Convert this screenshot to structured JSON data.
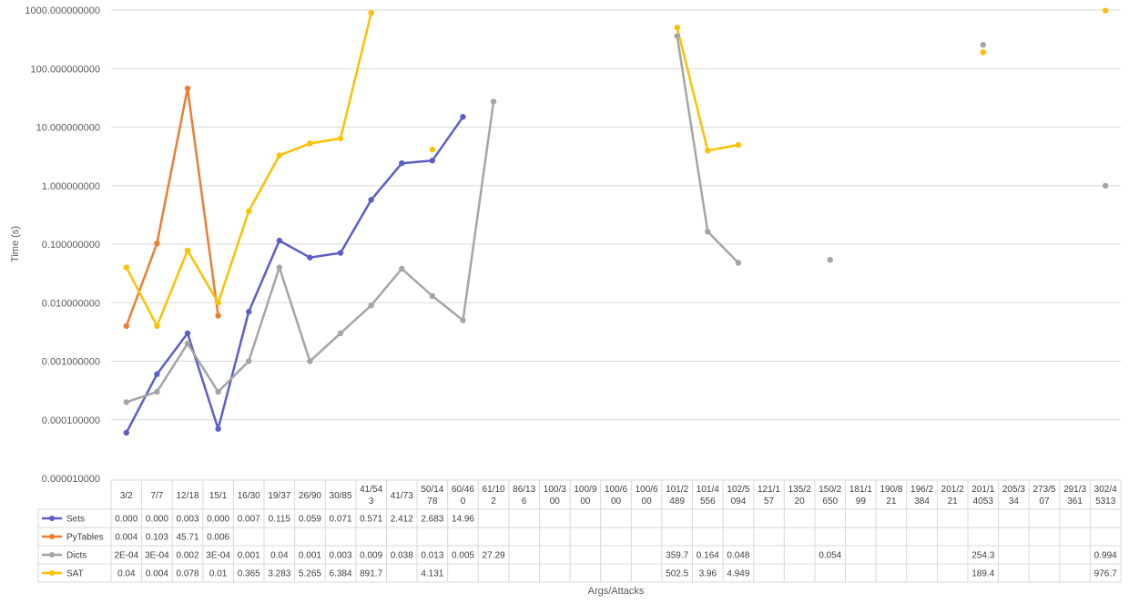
{
  "chart_data": {
    "type": "line",
    "ylabel": "Time (s)",
    "xlabel": "Args/Attacks",
    "yscale": "log",
    "ylim": [
      1e-05,
      1000
    ],
    "grid": true,
    "legend": "data-table",
    "y_ticks": [
      "0.000010000",
      "0.000100000",
      "0.001000000",
      "0.010000000",
      "0.100000000",
      "1.000000000",
      "10.000000000",
      "100.000000000",
      "1000.000000000"
    ],
    "categories": [
      "3/2",
      "7/7",
      "12/18",
      "15/1",
      "16/30",
      "19/37",
      "26/90",
      "30/85",
      "41/543",
      "41/73",
      "50/1478",
      "60/460",
      "61/102",
      "86/136",
      "100/300",
      "100/900",
      "100/600",
      "100/600",
      "101/2489",
      "101/4556",
      "102/5094",
      "121/157",
      "135/220",
      "150/2650",
      "181/199",
      "190/821",
      "196/2384",
      "201/221",
      "201/14053",
      "205/334",
      "273/507",
      "291/3361",
      "302/45313"
    ],
    "category_lines": [
      [
        "3/2"
      ],
      [
        "7/7"
      ],
      [
        "12/18"
      ],
      [
        "15/1"
      ],
      [
        "16/30"
      ],
      [
        "19/37"
      ],
      [
        "26/90"
      ],
      [
        "30/85"
      ],
      [
        "41/54",
        "3"
      ],
      [
        "41/73"
      ],
      [
        "50/14",
        "78"
      ],
      [
        "60/46",
        "0"
      ],
      [
        "61/10",
        "2"
      ],
      [
        "86/13",
        "6"
      ],
      [
        "100/3",
        "00"
      ],
      [
        "100/9",
        "00"
      ],
      [
        "100/6",
        "00"
      ],
      [
        "100/6",
        "00"
      ],
      [
        "101/2",
        "489"
      ],
      [
        "101/4",
        "556"
      ],
      [
        "102/5",
        "094"
      ],
      [
        "121/1",
        "57"
      ],
      [
        "135/2",
        "20"
      ],
      [
        "150/2",
        "650"
      ],
      [
        "181/1",
        "99"
      ],
      [
        "190/8",
        "21"
      ],
      [
        "196/2",
        "384"
      ],
      [
        "201/2",
        "21"
      ],
      [
        "201/1",
        "4053"
      ],
      [
        "205/3",
        "34"
      ],
      [
        "273/5",
        "07"
      ],
      [
        "291/3",
        "361"
      ],
      [
        "302/4",
        "5313"
      ]
    ],
    "series": [
      {
        "name": "Sets",
        "color": "#5b5fc7",
        "values": [
          6e-05,
          0.0006,
          0.003,
          7e-05,
          0.007,
          0.115,
          0.059,
          0.071,
          0.571,
          2.412,
          2.683,
          14.96,
          null,
          null,
          null,
          null,
          null,
          null,
          null,
          null,
          null,
          null,
          null,
          null,
          null,
          null,
          null,
          null,
          null,
          null,
          null,
          null,
          null
        ],
        "labels": [
          "0.000",
          "0.000",
          "0.003",
          "0.000",
          "0.007",
          "0.115",
          "0.059",
          "0.071",
          "0.571",
          "2.412",
          "2.683",
          "14.96",
          "",
          "",
          "",
          "",
          "",
          "",
          "",
          "",
          "",
          "",
          "",
          "",
          "",
          "",
          "",
          "",
          "",
          "",
          "",
          "",
          ""
        ]
      },
      {
        "name": "PyTables",
        "color": "#ed7d31",
        "values": [
          0.004,
          0.103,
          45.71,
          0.006,
          null,
          null,
          null,
          null,
          null,
          null,
          null,
          null,
          null,
          null,
          null,
          null,
          null,
          null,
          null,
          null,
          null,
          null,
          null,
          null,
          null,
          null,
          null,
          null,
          null,
          null,
          null,
          null,
          null
        ],
        "labels": [
          "0.004",
          "0.103",
          "45.71",
          "0.006",
          "",
          "",
          "",
          "",
          "",
          "",
          "",
          "",
          "",
          "",
          "",
          "",
          "",
          "",
          "",
          "",
          "",
          "",
          "",
          "",
          "",
          "",
          "",
          "",
          "",
          "",
          "",
          "",
          ""
        ]
      },
      {
        "name": "Dicts",
        "color": "#a5a5a5",
        "values": [
          0.0002,
          0.0003,
          0.002,
          0.0003,
          0.001,
          0.04,
          0.001,
          0.003,
          0.009,
          0.038,
          0.013,
          0.005,
          27.29,
          null,
          null,
          null,
          null,
          null,
          359.7,
          0.164,
          0.048,
          null,
          null,
          0.054,
          null,
          null,
          null,
          null,
          254.3,
          null,
          null,
          null,
          0.994
        ],
        "labels": [
          "2E-04",
          "3E-04",
          "0.002",
          "3E-04",
          "0.001",
          "0.04",
          "0.001",
          "0.003",
          "0.009",
          "0.038",
          "0.013",
          "0.005",
          "27.29",
          "",
          "",
          "",
          "",
          "",
          "359.7",
          "0.164",
          "0.048",
          "",
          "",
          "0.054",
          "",
          "",
          "",
          "",
          "254.3",
          "",
          "",
          "",
          "0.994"
        ]
      },
      {
        "name": "SAT",
        "color": "#ffc000",
        "values": [
          0.04,
          0.004,
          0.078,
          0.01,
          0.365,
          3.283,
          5.265,
          6.384,
          891.7,
          null,
          4.131,
          null,
          null,
          null,
          null,
          null,
          null,
          null,
          502.5,
          3.96,
          4.949,
          null,
          null,
          null,
          null,
          null,
          null,
          null,
          189.4,
          null,
          null,
          null,
          976.7
        ],
        "labels": [
          "0.04",
          "0.004",
          "0.078",
          "0.01",
          "0.365",
          "3.283",
          "5.265",
          "6.384",
          "891.7",
          "",
          "4.131",
          "",
          "",
          "",
          "",
          "",
          "",
          "",
          "502.5",
          "3.96",
          "4.949",
          "",
          "",
          "",
          "",
          "",
          "",
          "",
          "189.4",
          "",
          "",
          "",
          "976.7"
        ]
      }
    ]
  }
}
